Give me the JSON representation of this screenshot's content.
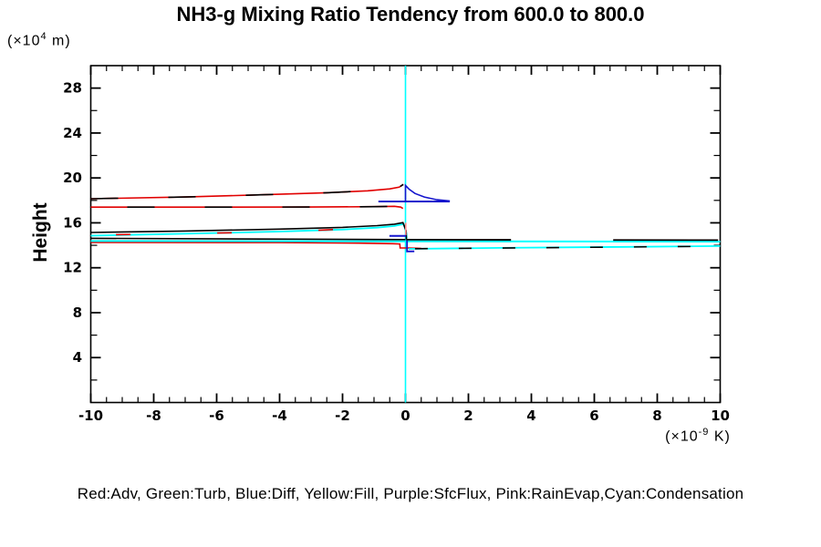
{
  "title": "NH3-g Mixing Ratio Tendency from 600.0 to 800.0",
  "y_axis": {
    "label": "Height",
    "unit_prefix": "(×10",
    "unit_sup": "4",
    "unit_suffix": " m)",
    "range": [
      0,
      30
    ],
    "major_tick_labels": [
      "4",
      "8",
      "12",
      "16",
      "20",
      "24",
      "28"
    ],
    "major_step": 4,
    "minor_step": 2
  },
  "x_axis": {
    "unit_prefix": "(×10",
    "unit_sup": "-9",
    "unit_suffix": " K)",
    "range": [
      -10,
      10
    ],
    "major_tick_labels": [
      "-10",
      "-8",
      "-6",
      "-4",
      "-2",
      "0",
      "2",
      "4",
      "6",
      "8",
      "10"
    ],
    "major_step": 2,
    "minor_step": 0.5
  },
  "legend": {
    "text": "Red:Adv, Green:Turb, Blue:Diff, Yellow:Fill, Purple:SfcFlux, Pink:RainEvap,Cyan:Condensation",
    "entries": [
      {
        "color_name": "Red",
        "hex": "#e10000",
        "term": "Adv"
      },
      {
        "color_name": "Green",
        "hex": "#008000",
        "term": "Turb"
      },
      {
        "color_name": "Blue",
        "hex": "#1414cd",
        "term": "Diff"
      },
      {
        "color_name": "Yellow",
        "hex": "#e0e000",
        "term": "Fill"
      },
      {
        "color_name": "Purple",
        "hex": "#a000a0",
        "term": "SfcFlux"
      },
      {
        "color_name": "Pink",
        "hex": "#ff8c8c",
        "term": "RainEvap"
      },
      {
        "color_name": "Cyan",
        "hex": "#00ffff",
        "term": "Condensation"
      }
    ]
  },
  "colors": {
    "axis": "#000000",
    "zero_line": "#00ffff",
    "background": "#ffffff",
    "text": "#000000"
  },
  "chart_data": {
    "type": "line",
    "title": "NH3-g Mixing Ratio Tendency from 600.0 to 800.0",
    "xlabel": "(×10-9 K)",
    "ylabel": "Height (×10^4 m)",
    "xlim": [
      -10,
      10
    ],
    "ylim": [
      0,
      30
    ],
    "grid": false,
    "note": "Vertical profiles: tendency value (x) versus height (y, ×10^4 m). Cyan vertical line marks zero.",
    "series": [
      {
        "name": "zero-reference",
        "color": "#00ffff",
        "width": 1.6,
        "points": [
          [
            0,
            0
          ],
          [
            0,
            30
          ]
        ]
      },
      {
        "name": "adv-upper",
        "color": "#e10000",
        "width": 1.6,
        "points": [
          [
            -10,
            18.15
          ],
          [
            -7,
            18.3
          ],
          [
            -4.5,
            18.5
          ],
          [
            -2.5,
            18.68
          ],
          [
            -1.2,
            18.85
          ],
          [
            -0.5,
            19.02
          ],
          [
            -0.2,
            19.18
          ],
          [
            -0.07,
            19.42
          ]
        ]
      },
      {
        "name": "adv-upper-overlay",
        "color": "#000000",
        "width": 1.6,
        "dash": "med",
        "points": [
          [
            -10,
            18.15
          ],
          [
            -7,
            18.3
          ],
          [
            -4.5,
            18.5
          ],
          [
            -2.5,
            18.68
          ],
          [
            -1.2,
            18.85
          ],
          [
            -0.5,
            19.02
          ],
          [
            -0.2,
            19.18
          ],
          [
            -0.07,
            19.42
          ]
        ]
      },
      {
        "name": "adv-lower",
        "color": "#e10000",
        "width": 1.6,
        "points": [
          [
            -10,
            17.4
          ],
          [
            -6,
            17.4
          ],
          [
            -3,
            17.41
          ],
          [
            -1,
            17.44
          ],
          [
            -0.35,
            17.47
          ],
          [
            -0.15,
            17.4
          ],
          [
            -0.08,
            17.28
          ]
        ]
      },
      {
        "name": "adv-lower-overlay",
        "color": "#000000",
        "width": 1.6,
        "dash": "med",
        "dashoffset": 45,
        "points": [
          [
            -10,
            17.4
          ],
          [
            -6,
            17.4
          ],
          [
            -3,
            17.41
          ],
          [
            -1,
            17.44
          ],
          [
            -0.35,
            17.47
          ],
          [
            -0.15,
            17.4
          ]
        ]
      },
      {
        "name": "cond-curve",
        "color": "#00ffff",
        "width": 1.8,
        "points": [
          [
            -10,
            14.86
          ],
          [
            -7,
            15.03
          ],
          [
            -4,
            15.22
          ],
          [
            -2,
            15.4
          ],
          [
            -0.9,
            15.57
          ],
          [
            -0.35,
            15.72
          ],
          [
            -0.06,
            15.9
          ],
          [
            0.03,
            15.1
          ],
          [
            0.04,
            14.62
          ]
        ]
      },
      {
        "name": "rainevap-dash-curve",
        "color": "#e10000",
        "width": 1.6,
        "dash": "sparse",
        "points": [
          [
            -9.2,
            14.95
          ],
          [
            -4,
            15.18
          ],
          [
            -0.5,
            15.63
          ],
          [
            -0.1,
            15.86
          ]
        ]
      },
      {
        "name": "turb-curve",
        "color": "#000000",
        "width": 1.6,
        "points": [
          [
            -10,
            15.14
          ],
          [
            -7,
            15.27
          ],
          [
            -4,
            15.44
          ],
          [
            -2,
            15.6
          ],
          [
            -0.9,
            15.75
          ],
          [
            -0.35,
            15.88
          ],
          [
            -0.08,
            16.02
          ],
          [
            0.02,
            15.3
          ],
          [
            0.03,
            14.56
          ]
        ]
      },
      {
        "name": "rainevap-mid",
        "color": "#e10000",
        "width": 1.6,
        "points": [
          [
            -10,
            14.26
          ],
          [
            -4,
            14.24
          ],
          [
            -1.5,
            14.19
          ],
          [
            -0.4,
            14.14
          ],
          [
            -0.18,
            14.12
          ],
          [
            -0.17,
            13.77
          ],
          [
            0.1,
            13.76
          ],
          [
            0.35,
            13.74
          ],
          [
            0.5,
            13.72
          ]
        ]
      },
      {
        "name": "cond-horizontal",
        "color": "#00ffff",
        "width": 2,
        "points": [
          [
            -10,
            14.38
          ],
          [
            10,
            14.33
          ]
        ]
      },
      {
        "name": "net-left",
        "color": "#000000",
        "width": 1.6,
        "points": [
          [
            -10,
            14.62
          ],
          [
            0,
            14.51
          ]
        ]
      },
      {
        "name": "net-right",
        "color": "#000000",
        "width": 1.8,
        "dash": "long",
        "points": [
          [
            0.02,
            14.5
          ],
          [
            10,
            14.46
          ]
        ]
      },
      {
        "name": "cond-lower",
        "color": "#00ffff",
        "width": 1.8,
        "points": [
          [
            0.1,
            13.68
          ],
          [
            3,
            13.77
          ],
          [
            7,
            13.86
          ],
          [
            10,
            13.93
          ]
        ]
      },
      {
        "name": "cond-lower-overlay",
        "color": "#000000",
        "width": 1.6,
        "dash": "short",
        "points": [
          [
            0.3,
            13.7
          ],
          [
            10,
            13.92
          ]
        ]
      },
      {
        "name": "rainevap-spike",
        "color": "#ff8c8c",
        "width": 1.6,
        "points": [
          [
            0.01,
            16.0
          ],
          [
            0.01,
            14.9
          ]
        ]
      },
      {
        "name": "diff-base",
        "color": "#1414cd",
        "width": 2,
        "points": [
          [
            -0.86,
            17.9
          ],
          [
            1.41,
            17.9
          ]
        ]
      },
      {
        "name": "diff-spike",
        "color": "#1414cd",
        "width": 1.6,
        "points": [
          [
            0,
            17.9
          ],
          [
            0,
            19.33
          ],
          [
            0.12,
            18.98
          ],
          [
            0.3,
            18.62
          ],
          [
            0.6,
            18.3
          ],
          [
            1.0,
            18.06
          ],
          [
            1.41,
            17.95
          ]
        ]
      },
      {
        "name": "diff-segment",
        "color": "#1414cd",
        "width": 2,
        "points": [
          [
            -0.51,
            14.84
          ],
          [
            0.02,
            14.84
          ]
        ]
      },
      {
        "name": "diff-negative",
        "color": "#1414cd",
        "width": 1.8,
        "points": [
          [
            0.05,
            14.44
          ],
          [
            0.05,
            13.45
          ],
          [
            0.28,
            13.46
          ]
        ]
      }
    ]
  }
}
